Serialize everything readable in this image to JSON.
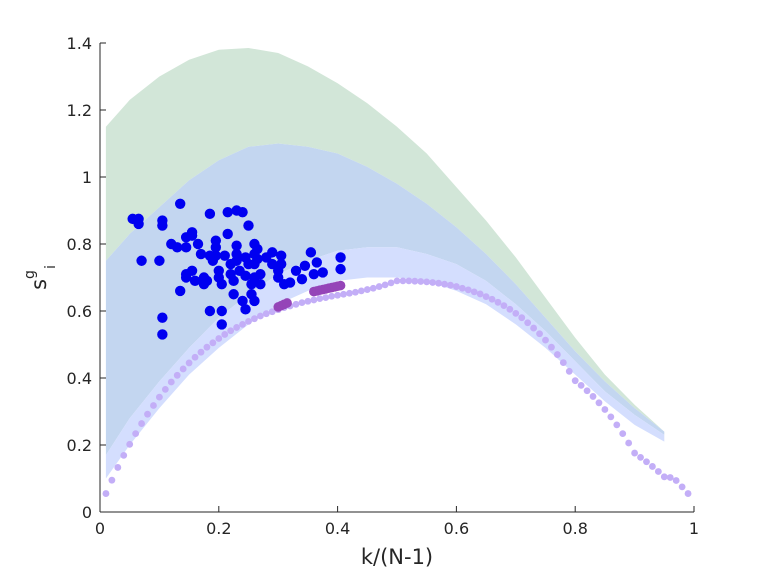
{
  "chart_data": {
    "type": "scatter",
    "title": "",
    "xlabel": "k/(N-1)",
    "ylabel_base": "s",
    "ylabel_sup": "g",
    "ylabel_sub": "i",
    "xlim": [
      0,
      1
    ],
    "ylim": [
      0,
      1.4
    ],
    "xticks": [
      "0",
      "0.2",
      "0.4",
      "0.6",
      "0.8",
      "1"
    ],
    "xtick_values": [
      0,
      0.2,
      0.4,
      0.6,
      0.8,
      1
    ],
    "yticks": [
      "0",
      "0.2",
      "0.4",
      "0.6",
      "0.8",
      "1",
      "1.2",
      "1.4"
    ],
    "ytick_values": [
      0,
      0.2,
      0.4,
      0.6,
      0.8,
      1,
      1.2,
      1.4
    ],
    "grid": false,
    "colors": {
      "green_band": "#d2e6d8",
      "blue_band": "#c3d6f0",
      "light_band": "#d4defe",
      "curve_dots": "#c3aef7",
      "highlight_dots": "#9545b8",
      "points": "#0000f0",
      "axis": "#262626"
    },
    "bands": [
      {
        "name": "green-band",
        "x": [
          0.01,
          0.05,
          0.1,
          0.15,
          0.2,
          0.25,
          0.3,
          0.35,
          0.4,
          0.45,
          0.5,
          0.55,
          0.6,
          0.65,
          0.7,
          0.75,
          0.8,
          0.85,
          0.9,
          0.95
        ],
        "upper": [
          1.15,
          1.23,
          1.3,
          1.35,
          1.38,
          1.385,
          1.37,
          1.33,
          1.28,
          1.22,
          1.15,
          1.07,
          0.97,
          0.87,
          0.76,
          0.64,
          0.52,
          0.41,
          0.32,
          0.24
        ],
        "lower": [
          0.75,
          0.83,
          0.91,
          0.99,
          1.05,
          1.09,
          1.1,
          1.09,
          1.07,
          1.03,
          0.98,
          0.92,
          0.85,
          0.77,
          0.68,
          0.58,
          0.48,
          0.39,
          0.31,
          0.24
        ]
      },
      {
        "name": "blue-band",
        "x": [
          0.01,
          0.05,
          0.1,
          0.15,
          0.2,
          0.25,
          0.3,
          0.35,
          0.4,
          0.45,
          0.5,
          0.55,
          0.6,
          0.65,
          0.7,
          0.75,
          0.8,
          0.85,
          0.9,
          0.95
        ],
        "upper": [
          0.75,
          0.83,
          0.91,
          0.99,
          1.05,
          1.09,
          1.1,
          1.09,
          1.07,
          1.03,
          0.98,
          0.92,
          0.85,
          0.77,
          0.68,
          0.58,
          0.48,
          0.39,
          0.31,
          0.24
        ],
        "lower": [
          0.17,
          0.28,
          0.39,
          0.49,
          0.58,
          0.65,
          0.71,
          0.75,
          0.78,
          0.79,
          0.79,
          0.77,
          0.74,
          0.69,
          0.62,
          0.54,
          0.45,
          0.36,
          0.29,
          0.23
        ]
      },
      {
        "name": "light-band",
        "x": [
          0.01,
          0.05,
          0.1,
          0.15,
          0.2,
          0.25,
          0.3,
          0.35,
          0.4,
          0.45,
          0.5,
          0.55,
          0.6,
          0.65,
          0.7,
          0.75,
          0.8,
          0.85,
          0.9,
          0.95
        ],
        "upper": [
          0.17,
          0.28,
          0.39,
          0.49,
          0.58,
          0.65,
          0.71,
          0.75,
          0.78,
          0.79,
          0.79,
          0.77,
          0.74,
          0.69,
          0.62,
          0.54,
          0.45,
          0.36,
          0.29,
          0.23
        ],
        "lower": [
          0.1,
          0.2,
          0.31,
          0.41,
          0.49,
          0.56,
          0.62,
          0.66,
          0.69,
          0.7,
          0.7,
          0.69,
          0.66,
          0.62,
          0.56,
          0.49,
          0.41,
          0.33,
          0.26,
          0.21
        ]
      }
    ],
    "curve_dots": {
      "name": "curve",
      "x": [
        0.01,
        0.02,
        0.03,
        0.04,
        0.05,
        0.06,
        0.07,
        0.08,
        0.09,
        0.1,
        0.11,
        0.12,
        0.13,
        0.14,
        0.15,
        0.16,
        0.17,
        0.18,
        0.19,
        0.2,
        0.21,
        0.22,
        0.23,
        0.24,
        0.25,
        0.26,
        0.27,
        0.28,
        0.29,
        0.3,
        0.31,
        0.32,
        0.33,
        0.34,
        0.35,
        0.36,
        0.37,
        0.38,
        0.39,
        0.4,
        0.41,
        0.42,
        0.43,
        0.44,
        0.45,
        0.46,
        0.47,
        0.48,
        0.49,
        0.5,
        0.51,
        0.52,
        0.53,
        0.54,
        0.55,
        0.56,
        0.57,
        0.58,
        0.59,
        0.6,
        0.61,
        0.62,
        0.63,
        0.64,
        0.65,
        0.66,
        0.67,
        0.68,
        0.69,
        0.7,
        0.71,
        0.72,
        0.73,
        0.74,
        0.75,
        0.76,
        0.77,
        0.78,
        0.79,
        0.8,
        0.81,
        0.82,
        0.83,
        0.84,
        0.85,
        0.86,
        0.87,
        0.88,
        0.89,
        0.9,
        0.91,
        0.92,
        0.93,
        0.94,
        0.95,
        0.96,
        0.97,
        0.98,
        0.99
      ],
      "y": [
        0.055,
        0.095,
        0.133,
        0.169,
        0.202,
        0.234,
        0.264,
        0.292,
        0.318,
        0.343,
        0.366,
        0.388,
        0.408,
        0.427,
        0.445,
        0.462,
        0.477,
        0.492,
        0.505,
        0.518,
        0.53,
        0.541,
        0.551,
        0.56,
        0.569,
        0.577,
        0.585,
        0.592,
        0.598,
        0.604,
        0.61,
        0.615,
        0.62,
        0.625,
        0.629,
        0.633,
        0.637,
        0.64,
        0.644,
        0.647,
        0.65,
        0.653,
        0.656,
        0.66,
        0.664,
        0.668,
        0.673,
        0.678,
        0.684,
        0.69,
        0.69,
        0.69,
        0.689,
        0.688,
        0.687,
        0.685,
        0.683,
        0.68,
        0.677,
        0.673,
        0.668,
        0.663,
        0.657,
        0.651,
        0.643,
        0.635,
        0.626,
        0.616,
        0.605,
        0.593,
        0.58,
        0.565,
        0.549,
        0.532,
        0.513,
        0.492,
        0.47,
        0.446,
        0.42,
        0.392,
        0.378,
        0.362,
        0.345,
        0.326,
        0.306,
        0.284,
        0.26,
        0.234,
        0.206,
        0.176,
        0.163,
        0.15,
        0.136,
        0.121,
        0.105,
        0.103,
        0.094,
        0.075,
        0.055
      ]
    },
    "highlight_dots": {
      "name": "highlight",
      "x": [
        0.3,
        0.305,
        0.31,
        0.315,
        0.36,
        0.365,
        0.37,
        0.375,
        0.38,
        0.385,
        0.39,
        0.395,
        0.4,
        0.405
      ],
      "y": [
        0.612,
        0.616,
        0.62,
        0.624,
        0.658,
        0.66,
        0.662,
        0.664,
        0.666,
        0.668,
        0.67,
        0.672,
        0.674,
        0.676
      ]
    },
    "scatter": {
      "name": "data-points",
      "points": [
        [
          0.055,
          0.875
        ],
        [
          0.065,
          0.875
        ],
        [
          0.065,
          0.86
        ],
        [
          0.07,
          0.75
        ],
        [
          0.1,
          0.75
        ],
        [
          0.105,
          0.87
        ],
        [
          0.105,
          0.855
        ],
        [
          0.105,
          0.58
        ],
        [
          0.105,
          0.53
        ],
        [
          0.12,
          0.8
        ],
        [
          0.13,
          0.79
        ],
        [
          0.135,
          0.92
        ],
        [
          0.135,
          0.66
        ],
        [
          0.145,
          0.82
        ],
        [
          0.145,
          0.79
        ],
        [
          0.145,
          0.71
        ],
        [
          0.145,
          0.7
        ],
        [
          0.155,
          0.835
        ],
        [
          0.155,
          0.825
        ],
        [
          0.155,
          0.72
        ],
        [
          0.16,
          0.69
        ],
        [
          0.165,
          0.8
        ],
        [
          0.17,
          0.77
        ],
        [
          0.175,
          0.7
        ],
        [
          0.175,
          0.68
        ],
        [
          0.18,
          0.69
        ],
        [
          0.185,
          0.89
        ],
        [
          0.185,
          0.765
        ],
        [
          0.185,
          0.6
        ],
        [
          0.19,
          0.75
        ],
        [
          0.195,
          0.81
        ],
        [
          0.195,
          0.79
        ],
        [
          0.195,
          0.765
        ],
        [
          0.2,
          0.72
        ],
        [
          0.2,
          0.7
        ],
        [
          0.205,
          0.68
        ],
        [
          0.205,
          0.6
        ],
        [
          0.205,
          0.56
        ],
        [
          0.21,
          0.765
        ],
        [
          0.215,
          0.83
        ],
        [
          0.215,
          0.895
        ],
        [
          0.22,
          0.74
        ],
        [
          0.22,
          0.71
        ],
        [
          0.225,
          0.69
        ],
        [
          0.225,
          0.65
        ],
        [
          0.23,
          0.9
        ],
        [
          0.23,
          0.795
        ],
        [
          0.23,
          0.77
        ],
        [
          0.23,
          0.75
        ],
        [
          0.235,
          0.72
        ],
        [
          0.24,
          0.895
        ],
        [
          0.24,
          0.63
        ],
        [
          0.245,
          0.76
        ],
        [
          0.245,
          0.705
        ],
        [
          0.245,
          0.605
        ],
        [
          0.25,
          0.855
        ],
        [
          0.25,
          0.74
        ],
        [
          0.255,
          0.68
        ],
        [
          0.255,
          0.65
        ],
        [
          0.26,
          0.8
        ],
        [
          0.26,
          0.77
        ],
        [
          0.26,
          0.74
        ],
        [
          0.26,
          0.7
        ],
        [
          0.26,
          0.63
        ],
        [
          0.265,
          0.785
        ],
        [
          0.265,
          0.755
        ],
        [
          0.27,
          0.71
        ],
        [
          0.27,
          0.68
        ],
        [
          0.28,
          0.76
        ],
        [
          0.29,
          0.775
        ],
        [
          0.29,
          0.74
        ],
        [
          0.3,
          0.72
        ],
        [
          0.3,
          0.7
        ],
        [
          0.305,
          0.765
        ],
        [
          0.305,
          0.74
        ],
        [
          0.31,
          0.68
        ],
        [
          0.32,
          0.685
        ],
        [
          0.33,
          0.72
        ],
        [
          0.34,
          0.695
        ],
        [
          0.345,
          0.735
        ],
        [
          0.355,
          0.775
        ],
        [
          0.36,
          0.71
        ],
        [
          0.365,
          0.745
        ],
        [
          0.375,
          0.715
        ],
        [
          0.405,
          0.76
        ],
        [
          0.405,
          0.725
        ]
      ]
    }
  }
}
